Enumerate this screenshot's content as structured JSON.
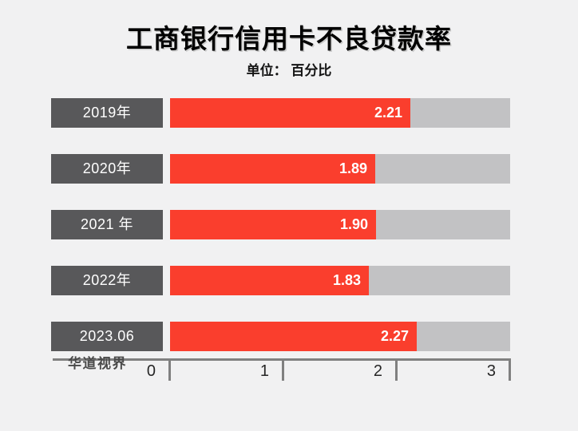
{
  "header": {
    "title": "工商银行信用卡不良贷款率",
    "subtitle": "单位： 百分比"
  },
  "watermark": "华道视界",
  "colors": {
    "background": "#f1f1f2",
    "bar_fill": "#fa3e2d",
    "bar_track": "#c2c2c4",
    "label_box": "#58585a",
    "axis": "#808080"
  },
  "chart_data": {
    "type": "bar",
    "orientation": "horizontal",
    "title": "工商银行信用卡不良贷款率",
    "unit_label": "单位： 百分比",
    "categories": [
      "2019年",
      "2020年",
      "2021 年",
      "2022年",
      "2023.06"
    ],
    "values": [
      2.21,
      1.89,
      1.9,
      1.83,
      2.27
    ],
    "value_labels": [
      "2.21",
      "1.89",
      "1.90",
      "1.83",
      "2.27"
    ],
    "x_ticks": [
      "0",
      "1",
      "2",
      "3"
    ],
    "xlim": [
      0,
      3
    ],
    "xlabel": "",
    "ylabel": "",
    "grid": false,
    "legend": false,
    "value_label_position": "inside-end",
    "source_watermark": "华道视界"
  }
}
